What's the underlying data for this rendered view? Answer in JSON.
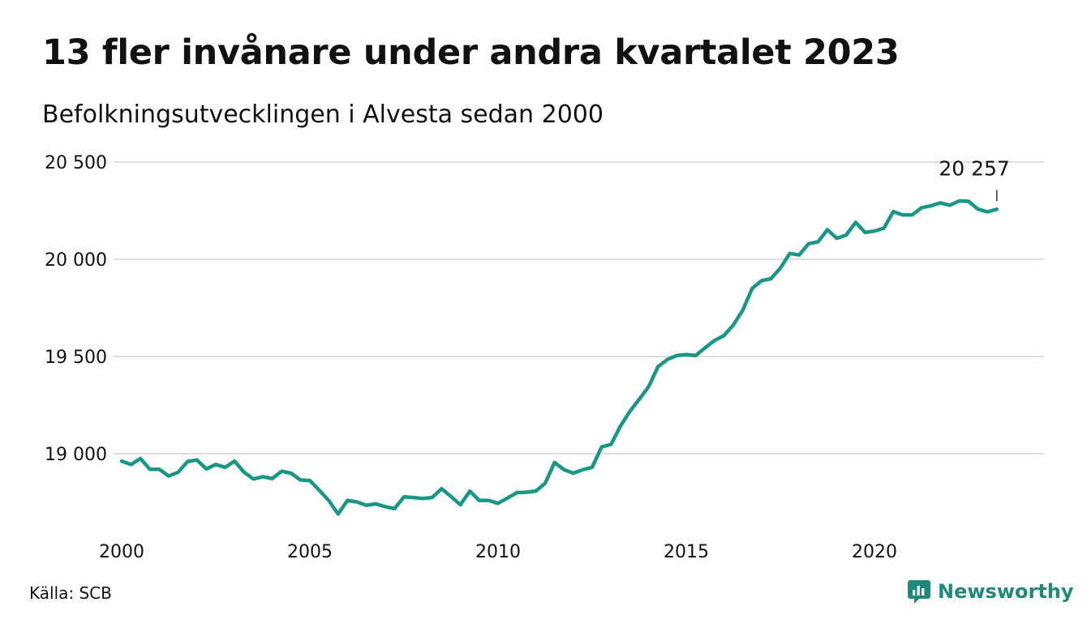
{
  "header": {
    "title": "13 fler invånare under andra kvartalet 2023",
    "subtitle": "Befolkningsutvecklingen i Alvesta sedan 2000"
  },
  "footer": {
    "source": "Källa: SCB",
    "brand_name": "Newsworthy"
  },
  "colors": {
    "line": "#1a9684",
    "grid": "#dddddd",
    "brand": "#1f8a7a"
  },
  "icons": {
    "brand": "newsworthy-logo-icon"
  },
  "chart_data": {
    "type": "line",
    "title": "13 fler invånare under andra kvartalet 2023",
    "subtitle": "Befolkningsutvecklingen i Alvesta sedan 2000",
    "x_ticks": [
      2000,
      2005,
      2010,
      2015,
      2020
    ],
    "x_tick_labels": [
      "2000",
      "2005",
      "2010",
      "2015",
      "2020"
    ],
    "y_ticks": [
      19000,
      19500,
      20000,
      20500
    ],
    "y_tick_labels": [
      "19 000",
      "19 500",
      "20 000",
      "20 500"
    ],
    "xlim": [
      2000,
      2023.75
    ],
    "ylim": [
      18660,
      20500
    ],
    "grid": true,
    "legend": "none",
    "end_label": "20 257",
    "series": [
      {
        "values": [
          [
            2000.0,
            18962
          ],
          [
            2000.25,
            18945
          ],
          [
            2000.5,
            18975
          ],
          [
            2000.75,
            18920
          ],
          [
            2001.0,
            18920
          ],
          [
            2001.25,
            18885
          ],
          [
            2001.5,
            18905
          ],
          [
            2001.75,
            18960
          ],
          [
            2002.0,
            18968
          ],
          [
            2002.25,
            18922
          ],
          [
            2002.5,
            18945
          ],
          [
            2002.75,
            18930
          ],
          [
            2003.0,
            18962
          ],
          [
            2003.25,
            18905
          ],
          [
            2003.5,
            18870
          ],
          [
            2003.75,
            18882
          ],
          [
            2004.0,
            18872
          ],
          [
            2004.25,
            18910
          ],
          [
            2004.5,
            18900
          ],
          [
            2004.75,
            18865
          ],
          [
            2005.0,
            18862
          ],
          [
            2005.25,
            18812
          ],
          [
            2005.5,
            18760
          ],
          [
            2005.75,
            18690
          ],
          [
            2006.0,
            18760
          ],
          [
            2006.25,
            18752
          ],
          [
            2006.5,
            18735
          ],
          [
            2006.75,
            18742
          ],
          [
            2007.0,
            18728
          ],
          [
            2007.25,
            18718
          ],
          [
            2007.5,
            18778
          ],
          [
            2007.75,
            18775
          ],
          [
            2008.0,
            18770
          ],
          [
            2008.25,
            18775
          ],
          [
            2008.5,
            18820
          ],
          [
            2008.75,
            18780
          ],
          [
            2009.0,
            18738
          ],
          [
            2009.25,
            18808
          ],
          [
            2009.5,
            18760
          ],
          [
            2009.75,
            18760
          ],
          [
            2010.0,
            18745
          ],
          [
            2010.25,
            18772
          ],
          [
            2010.5,
            18800
          ],
          [
            2010.75,
            18802
          ],
          [
            2011.0,
            18808
          ],
          [
            2011.25,
            18848
          ],
          [
            2011.5,
            18955
          ],
          [
            2011.75,
            18918
          ],
          [
            2012.0,
            18900
          ],
          [
            2012.25,
            18918
          ],
          [
            2012.5,
            18930
          ],
          [
            2012.75,
            19035
          ],
          [
            2013.0,
            19048
          ],
          [
            2013.25,
            19142
          ],
          [
            2013.5,
            19218
          ],
          [
            2013.75,
            19280
          ],
          [
            2014.0,
            19345
          ],
          [
            2014.25,
            19448
          ],
          [
            2014.5,
            19485
          ],
          [
            2014.75,
            19505
          ],
          [
            2015.0,
            19510
          ],
          [
            2015.25,
            19505
          ],
          [
            2015.5,
            19545
          ],
          [
            2015.75,
            19582
          ],
          [
            2016.0,
            19608
          ],
          [
            2016.25,
            19662
          ],
          [
            2016.5,
            19738
          ],
          [
            2016.75,
            19850
          ],
          [
            2017.0,
            19890
          ],
          [
            2017.25,
            19900
          ],
          [
            2017.5,
            19955
          ],
          [
            2017.75,
            20030
          ],
          [
            2018.0,
            20022
          ],
          [
            2018.25,
            20080
          ],
          [
            2018.5,
            20090
          ],
          [
            2018.75,
            20152
          ],
          [
            2019.0,
            20108
          ],
          [
            2019.25,
            20125
          ],
          [
            2019.5,
            20190
          ],
          [
            2019.75,
            20138
          ],
          [
            2020.0,
            20145
          ],
          [
            2020.25,
            20160
          ],
          [
            2020.5,
            20245
          ],
          [
            2020.75,
            20228
          ],
          [
            2021.0,
            20228
          ],
          [
            2021.25,
            20265
          ],
          [
            2021.5,
            20275
          ],
          [
            2021.75,
            20290
          ],
          [
            2022.0,
            20278
          ],
          [
            2022.25,
            20300
          ],
          [
            2022.5,
            20298
          ],
          [
            2022.75,
            20258
          ],
          [
            2023.0,
            20244
          ],
          [
            2023.25,
            20257
          ]
        ]
      }
    ]
  }
}
